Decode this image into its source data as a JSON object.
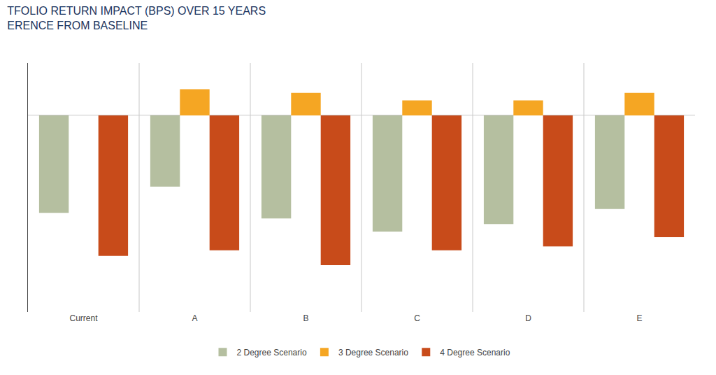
{
  "chart_data": {
    "type": "bar",
    "title": "TFOLIO RETURN IMPACT (BPS) OVER 15 YEARS",
    "subtitle": "ERENCE FROM BASELINE",
    "categories": [
      "Current",
      "A",
      "B",
      "C",
      "D",
      "E"
    ],
    "series": [
      {
        "name": "2 Degree Scenario",
        "color": "#b5bfa0",
        "values": [
          -52,
          -38,
          -55,
          -62,
          -58,
          -50
        ]
      },
      {
        "name": "3 Degree Scenario",
        "color": "#f5a623",
        "values": [
          0,
          14,
          12,
          8,
          8,
          12
        ]
      },
      {
        "name": "4 Degree Scenario",
        "color": "#c84b1a",
        "values": [
          -75,
          -72,
          -80,
          -72,
          -70,
          -65
        ]
      }
    ],
    "ylim": [
      -105,
      28
    ],
    "tick_labels": "x",
    "grid": false,
    "legend": "bottom"
  }
}
